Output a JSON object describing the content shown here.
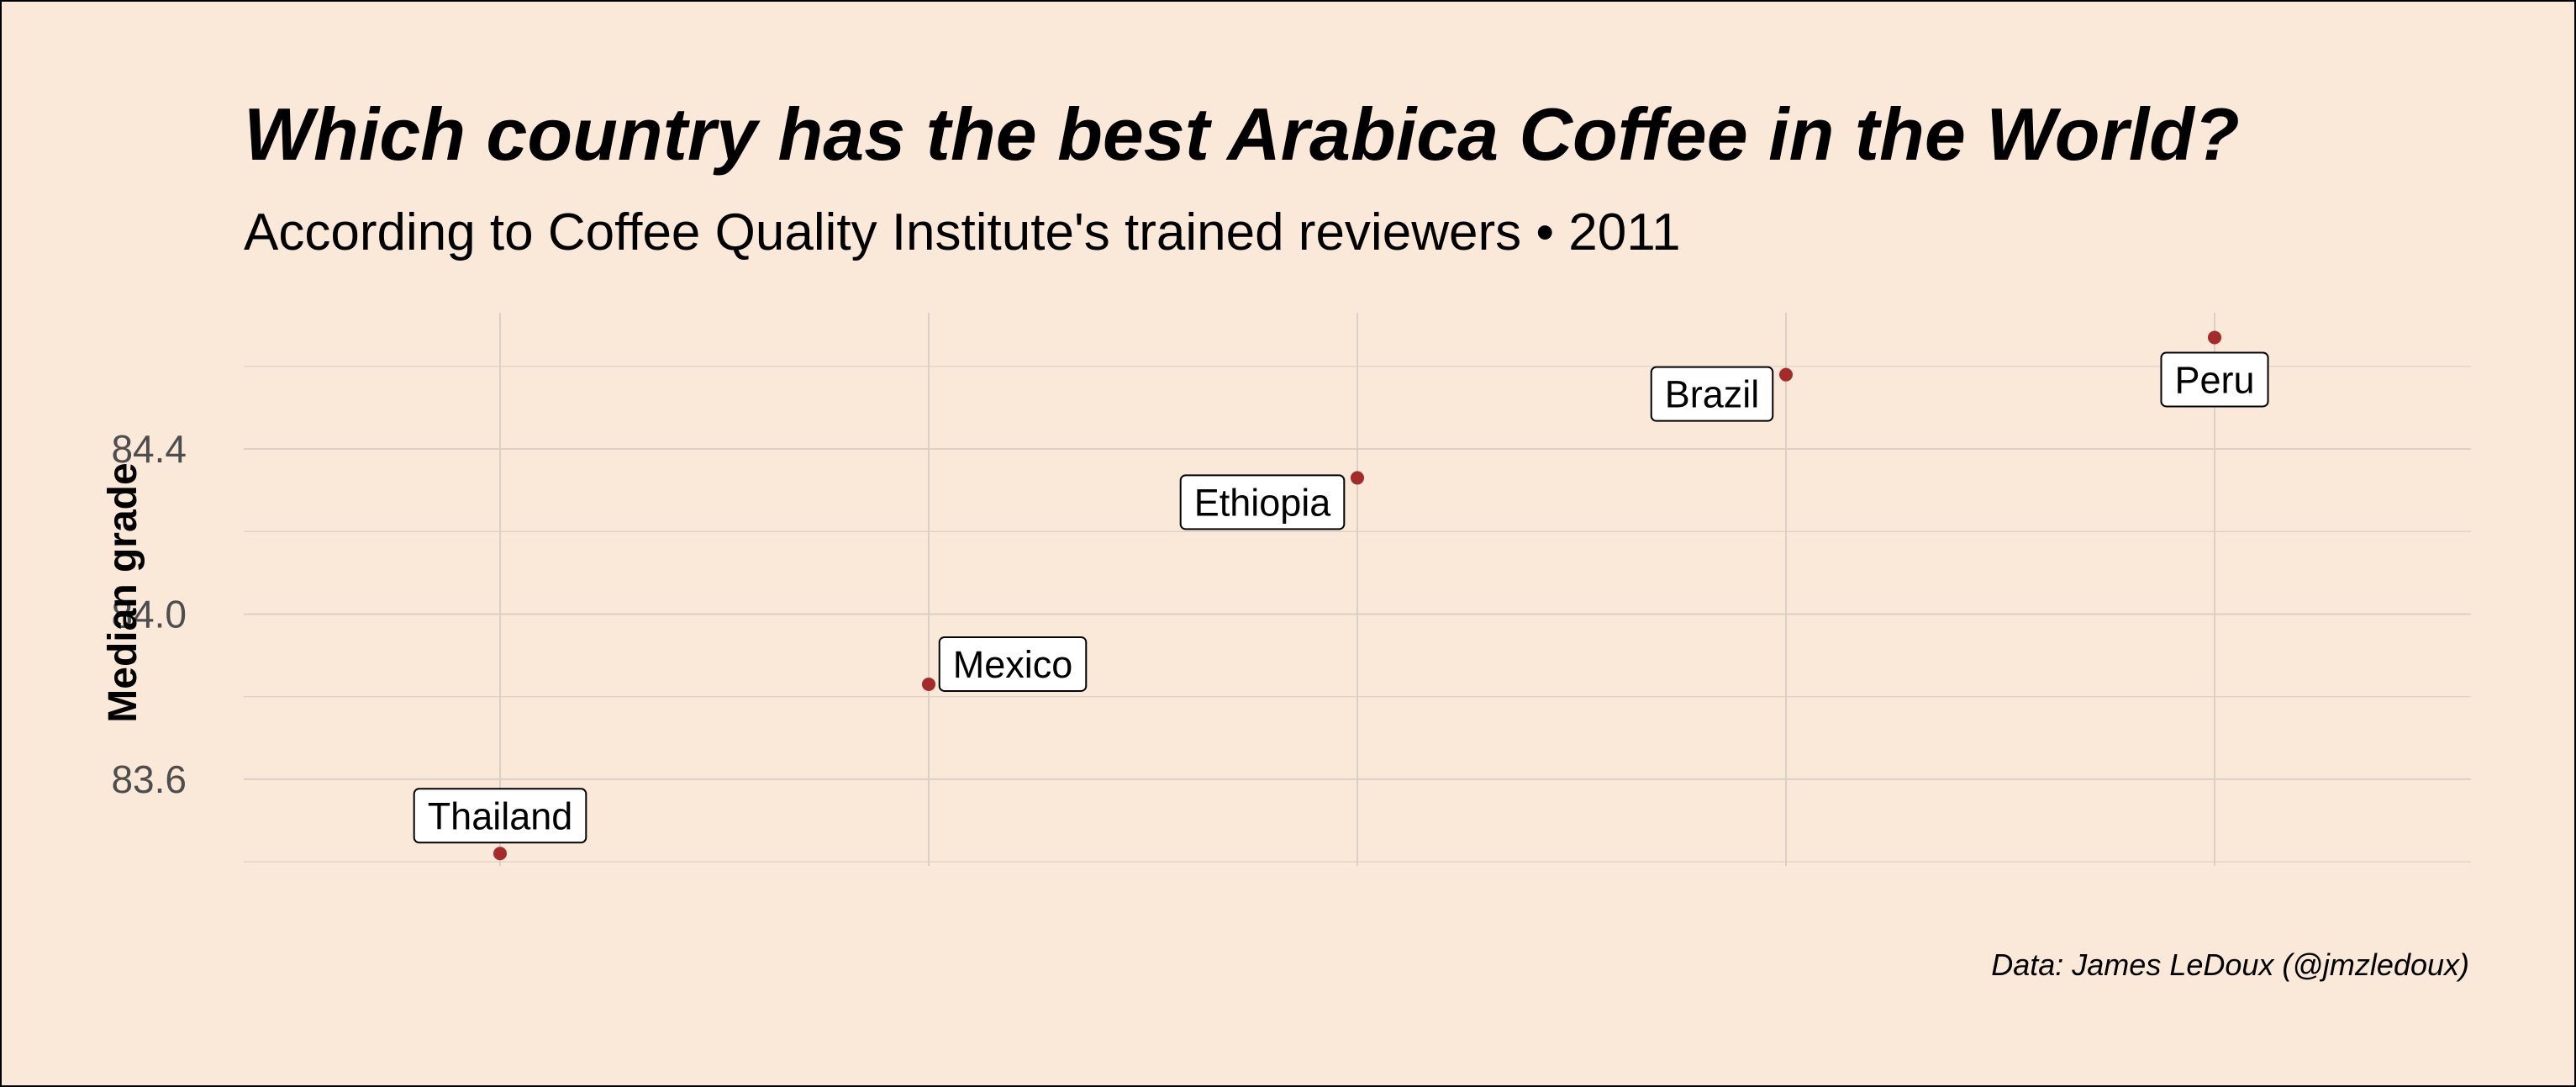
{
  "title": "Which country has the best Arabica Coffee in the World?",
  "subtitle": "According to Coffee Quality Institute's trained reviewers • 2011",
  "caption": "Data: James LeDoux (@jmzledoux)",
  "colors": {
    "background": "#FAE8D9",
    "point": "#A52A2A",
    "grid": "#DCCFC3",
    "label_fill": "#FFFFFF"
  },
  "chart_data": {
    "type": "scatter",
    "title": "Which country has the best Arabica Coffee in the World?",
    "subtitle": "According to Coffee Quality Institute's trained reviewers • 2011",
    "xlabel": "",
    "ylabel": "Median grade",
    "ylim": [
      83.39,
      84.73
    ],
    "yticks": [
      83.6,
      84.0,
      84.4
    ],
    "ytick_labels": [
      "83.6",
      "84.0",
      "84.4"
    ],
    "grid": true,
    "x_axis_labels_shown": false,
    "categories": [
      "Thailand",
      "Mexico",
      "Ethiopia",
      "Brazil",
      "Peru"
    ],
    "values": [
      83.42,
      83.83,
      84.33,
      84.58,
      84.67
    ],
    "point_labels": [
      "Thailand",
      "Mexico",
      "Ethiopia",
      "Brazil",
      "Peru"
    ]
  }
}
